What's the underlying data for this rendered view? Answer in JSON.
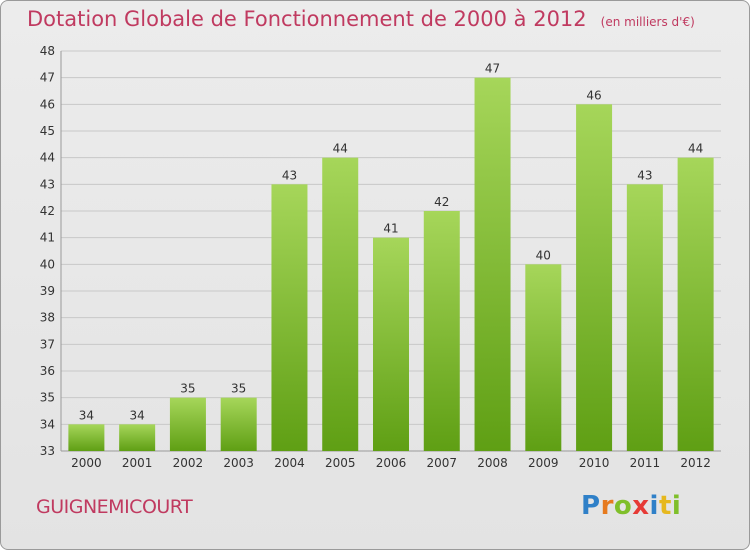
{
  "header": {
    "title": "Dotation Globale de Fonctionnement de 2000 à 2012",
    "unit": "(en milliers d'€)"
  },
  "footer": {
    "commune": "GUIGNEMICOURT",
    "logo_letters": [
      "P",
      "r",
      "o",
      "x",
      "i",
      "t",
      "i"
    ],
    "logo_colors": [
      "#2f80c8",
      "#e67a1e",
      "#7fbf2a",
      "#e63a36",
      "#2f80c8",
      "#e6b81e",
      "#7fbf2a"
    ]
  },
  "colors": {
    "bar_light": "#a6d65a",
    "bar_dark": "#5f9f14",
    "grid": "#c8c8c8",
    "accent": "#c03a60"
  },
  "chart_data": {
    "type": "bar",
    "title": "Dotation Globale de Fonctionnement de 2000 à 2012",
    "subtitle": "(en milliers d'€)",
    "xlabel": "",
    "ylabel": "",
    "categories": [
      "2000",
      "2001",
      "2002",
      "2003",
      "2004",
      "2005",
      "2006",
      "2007",
      "2008",
      "2009",
      "2010",
      "2011",
      "2012"
    ],
    "values": [
      34,
      34,
      35,
      35,
      43,
      44,
      41,
      42,
      47,
      40,
      46,
      43,
      44
    ],
    "ylim": [
      33,
      48
    ],
    "yticks": [
      33,
      34,
      35,
      36,
      37,
      38,
      39,
      40,
      41,
      42,
      43,
      44,
      45,
      46,
      47,
      48
    ],
    "grid": true,
    "data_labels": true
  }
}
